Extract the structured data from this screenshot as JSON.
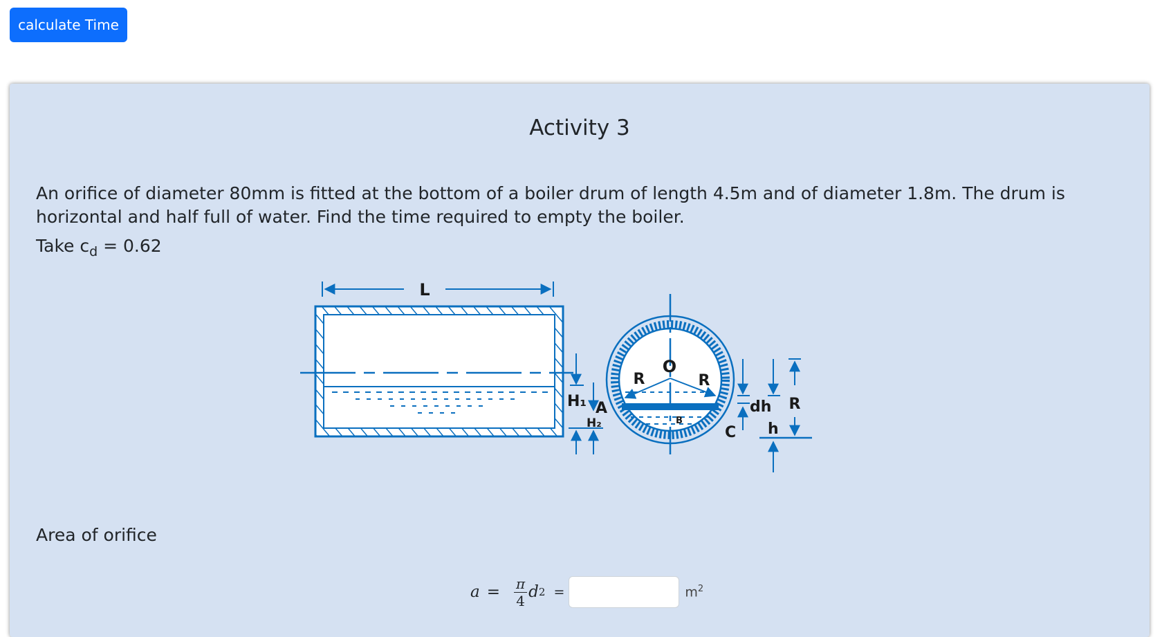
{
  "toolbar": {
    "calculate_label": "calculate Time"
  },
  "activity": {
    "title": "Activity 3",
    "problem_text": "An orifice of diameter 80mm is fitted at the bottom of a boiler drum of length 4.5m and of diameter 1.8m. The drum is horizontal and half full of water. Find the time required to empty the boiler.",
    "take_prefix": "Take c",
    "take_sub": "d",
    "take_value": " = 0.62"
  },
  "figure": {
    "color": "#0a6fbf",
    "labels": {
      "length": "L",
      "h1": "H₁",
      "a": "A",
      "h2": "H₂",
      "r_left": "R",
      "center": "O",
      "r_right": "R",
      "b": "B",
      "c": "C",
      "dh": "dh",
      "h": "h",
      "r_side": "R"
    }
  },
  "area_section": {
    "label": "Area of orifice",
    "formula": {
      "lhs": "a",
      "equals": "=",
      "numerator": "π",
      "denominator": "4",
      "variable": "d",
      "exponent": "2",
      "equals2": "="
    },
    "input": {
      "value": "",
      "placeholder": ""
    },
    "unit": "m",
    "unit_exp": "2"
  }
}
